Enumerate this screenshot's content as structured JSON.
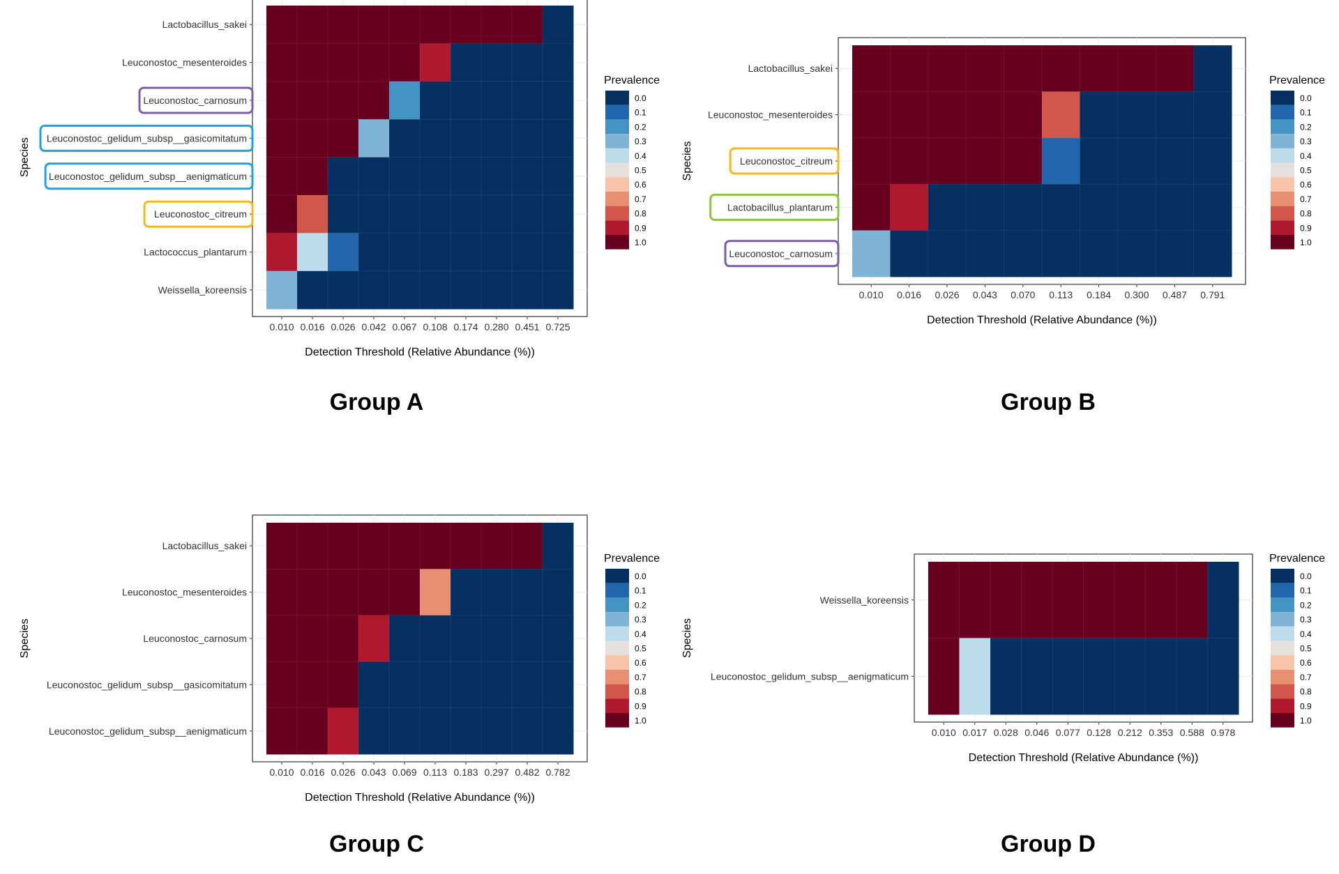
{
  "colorscale": {
    "stops": [
      0.0,
      0.1,
      0.2,
      0.3,
      0.4,
      0.5,
      0.6,
      0.7,
      0.8,
      0.9,
      1.0
    ],
    "labels": [
      "0.0",
      "0.1",
      "0.2",
      "0.3",
      "0.4",
      "0.5",
      "0.6",
      "0.7",
      "0.8",
      "0.9",
      "1.0"
    ],
    "colors": [
      "#053061",
      "#2166AC",
      "#4393C3",
      "#7FB3D5",
      "#BDDCEB",
      "#E6E0DC",
      "#F7C3A9",
      "#E88E71",
      "#D1574A",
      "#B0182D",
      "#67001F"
    ]
  },
  "highlight_colors": {
    "purple": "#7B5EA7",
    "blue": "#1BA3E3",
    "yellow": "#F6B819",
    "green": "#8CC63F"
  },
  "chart_data": [
    {
      "type": "heatmap",
      "group_label": "Group A",
      "xlabel": "Detection Threshold (Relative Abundance (%))",
      "ylabel": "Species",
      "legend_title": "Prevalence",
      "x": [
        "0.010",
        "0.016",
        "0.026",
        "0.042",
        "0.067",
        "0.108",
        "0.174",
        "0.280",
        "0.451",
        "0.725"
      ],
      "y": [
        "Lactobacillus_sakei",
        "Leuconostoc_mesenteroides",
        "Leuconostoc_carnosum",
        "Leuconostoc_gelidum_subsp__gasicomitatum",
        "Leuconostoc_gelidum_subsp__aenigmaticum",
        "Leuconostoc_citreum",
        "Lactococcus_plantarum",
        "Weissella_koreensis"
      ],
      "highlights": [
        "",
        "",
        "purple",
        "blue",
        "blue",
        "yellow",
        "",
        ""
      ],
      "values": [
        [
          1,
          1,
          1,
          1,
          1,
          1,
          1,
          1,
          1,
          0
        ],
        [
          1,
          1,
          1,
          1,
          1,
          0.9,
          0,
          0,
          0,
          0
        ],
        [
          1,
          1,
          1,
          1,
          0.2,
          0,
          0,
          0,
          0,
          0
        ],
        [
          1,
          1,
          1,
          0.3,
          0,
          0,
          0,
          0,
          0,
          0
        ],
        [
          1,
          1,
          0,
          0,
          0,
          0,
          0,
          0,
          0,
          0
        ],
        [
          1,
          0.8,
          0,
          0,
          0,
          0,
          0,
          0,
          0,
          0
        ],
        [
          0.9,
          0.4,
          0.1,
          0,
          0,
          0,
          0,
          0,
          0,
          0
        ],
        [
          0.3,
          0,
          0,
          0,
          0,
          0,
          0,
          0,
          0,
          0
        ]
      ]
    },
    {
      "type": "heatmap",
      "group_label": "Group B",
      "xlabel": "Detection Threshold (Relative Abundance (%))",
      "ylabel": "Species",
      "legend_title": "Prevalence",
      "x": [
        "0.010",
        "0.016",
        "0.026",
        "0.043",
        "0.070",
        "0.113",
        "0.184",
        "0.300",
        "0.487",
        "0.791"
      ],
      "y": [
        "Lactobacillus_sakei",
        "Leuconostoc_mesenteroides",
        "Leuconostoc_citreum",
        "Lactobacillus_plantarum",
        "Leuconostoc_carnosum"
      ],
      "highlights": [
        "",
        "",
        "yellow",
        "green",
        "purple"
      ],
      "values": [
        [
          1,
          1,
          1,
          1,
          1,
          1,
          1,
          1,
          1,
          0
        ],
        [
          1,
          1,
          1,
          1,
          1,
          0.8,
          0,
          0,
          0,
          0
        ],
        [
          1,
          1,
          1,
          1,
          1,
          0.1,
          0,
          0,
          0,
          0
        ],
        [
          1,
          0.9,
          0,
          0,
          0,
          0,
          0,
          0,
          0,
          0
        ],
        [
          0.3,
          0,
          0,
          0,
          0,
          0,
          0,
          0,
          0,
          0
        ]
      ]
    },
    {
      "type": "heatmap",
      "group_label": "Group C",
      "xlabel": "Detection Threshold (Relative Abundance (%))",
      "ylabel": "Species",
      "legend_title": "Prevalence",
      "x": [
        "0.010",
        "0.016",
        "0.026",
        "0.043",
        "0.069",
        "0.113",
        "0.183",
        "0.297",
        "0.482",
        "0.782"
      ],
      "y": [
        "Lactobacillus_sakei",
        "Leuconostoc_mesenteroides",
        "Leuconostoc_carnosum",
        "Leuconostoc_gelidum_subsp__gasicomitatum",
        "Leuconostoc_gelidum_subsp__aenigmaticum"
      ],
      "highlights": [
        "",
        "",
        "",
        "",
        ""
      ],
      "values": [
        [
          1,
          1,
          1,
          1,
          1,
          1,
          1,
          1,
          1,
          0
        ],
        [
          1,
          1,
          1,
          1,
          1,
          0.7,
          0,
          0,
          0,
          0
        ],
        [
          1,
          1,
          1,
          0.9,
          0,
          0,
          0,
          0,
          0,
          0
        ],
        [
          1,
          1,
          1,
          0,
          0,
          0,
          0,
          0,
          0,
          0
        ],
        [
          1,
          1,
          0.9,
          0,
          0,
          0,
          0,
          0,
          0,
          0
        ]
      ]
    },
    {
      "type": "heatmap",
      "group_label": "Group D",
      "xlabel": "Detection Threshold (Relative Abundance (%))",
      "ylabel": "Species",
      "legend_title": "Prevalence",
      "x": [
        "0.010",
        "0.017",
        "0.028",
        "0.046",
        "0.077",
        "0.128",
        "0.212",
        "0.353",
        "0.588",
        "0.978"
      ],
      "y": [
        "Weissella_koreensis",
        "Leuconostoc_gelidum_subsp__aenigmaticum"
      ],
      "highlights": [
        "",
        ""
      ],
      "values": [
        [
          1,
          1,
          1,
          1,
          1,
          1,
          1,
          1,
          1,
          0
        ],
        [
          1,
          0.4,
          0,
          0,
          0,
          0,
          0,
          0,
          0,
          0
        ]
      ]
    }
  ]
}
